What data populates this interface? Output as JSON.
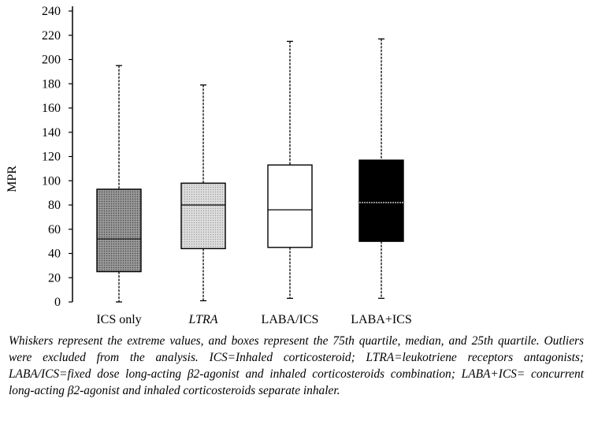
{
  "chart_data": {
    "type": "box",
    "title": "",
    "xlabel": "",
    "ylabel": "MPR",
    "ylim": [
      0,
      240
    ],
    "yticks": [
      0,
      20,
      40,
      60,
      80,
      100,
      120,
      140,
      160,
      180,
      200,
      220,
      240
    ],
    "grid": false,
    "legend": "none",
    "categories": [
      {
        "label": "ICS only",
        "italic": false,
        "min": 0,
        "q1": 25,
        "median": 52,
        "q3": 93,
        "max": 195,
        "fill": "dots-dark"
      },
      {
        "label": "LTRA",
        "italic": true,
        "min": 1,
        "q1": 44,
        "median": 80,
        "q3": 98,
        "max": 179,
        "fill": "dots-light"
      },
      {
        "label": "LABA/ICS",
        "italic": false,
        "min": 3,
        "q1": 45,
        "median": 76,
        "q3": 113,
        "max": 215,
        "fill": "white"
      },
      {
        "label": "LABA+ICS",
        "italic": false,
        "min": 3,
        "q1": 50,
        "median": 82,
        "q3": 117,
        "max": 217,
        "fill": "black"
      }
    ],
    "colors": {
      "axis": "#000000",
      "black_box": "#000000",
      "white_box": "#ffffff"
    }
  },
  "caption": "Whiskers represent the extreme values, and boxes represent the 75th quartile, median, and 25th quartile. Outliers were excluded from the analysis. ICS=Inhaled corticosteroid; LTRA=leukotriene receptors antagonists; LABA/ICS=fixed dose long-acting β2-agonist and inhaled corticosteroids combination; LABA+ICS= concurrent long-acting β2-agonist and inhaled corticosteroids separate inhaler."
}
